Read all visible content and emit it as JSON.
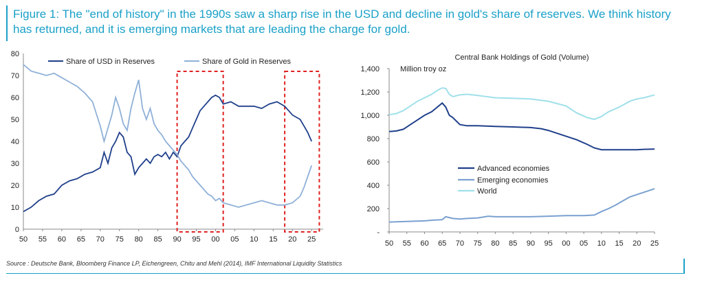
{
  "header": {
    "title": "Figure 1: The \"end of history\" in the 1990s saw a sharp rise in the USD and decline in gold's share of reserves. We think history has returned, and it is emerging markets that are leading the charge for gold."
  },
  "source": "Source : Deutsche Bank, Bloomberg Finance LP, Eichengreen, Chitu and Mehl (2014), IMF International Liquidity Statistics",
  "colors": {
    "accent": "#1aa0c8",
    "dark_blue": "#1f3f8a",
    "light_blue": "#8fb0d8",
    "cyan": "#9fe0ea",
    "red_box": "#e02020"
  },
  "chart_data": [
    {
      "type": "line",
      "title": "",
      "xlim": [
        1950,
        2028
      ],
      "ylim": [
        0,
        80
      ],
      "x_ticks": [
        "50",
        "55",
        "60",
        "65",
        "70",
        "75",
        "80",
        "85",
        "90",
        "95",
        "00",
        "05",
        "10",
        "15",
        "20",
        "25"
      ],
      "y_ticks": [
        "0",
        "10",
        "20",
        "30",
        "40",
        "50",
        "60",
        "70",
        "80"
      ],
      "legend_position": "top",
      "annotations": [
        {
          "type": "dashed-box",
          "x_from": 1990,
          "x_to": 2002
        },
        {
          "type": "dashed-box",
          "x_from": 2018,
          "x_to": 2027
        }
      ],
      "series": [
        {
          "name": "Share of USD in Reserves",
          "color": "#1f3f8a",
          "x": [
            1950,
            1952,
            1954,
            1956,
            1958,
            1960,
            1962,
            1964,
            1966,
            1968,
            1970,
            1971,
            1972,
            1973,
            1974,
            1975,
            1976,
            1977,
            1978,
            1979,
            1980,
            1981,
            1982,
            1983,
            1984,
            1985,
            1986,
            1987,
            1988,
            1989,
            1990,
            1991,
            1992,
            1993,
            1994,
            1995,
            1996,
            1997,
            1998,
            1999,
            2000,
            2001,
            2002,
            2004,
            2006,
            2008,
            2010,
            2012,
            2014,
            2016,
            2018,
            2020,
            2022,
            2023,
            2024,
            2025
          ],
          "y": [
            8,
            10,
            13,
            15,
            16,
            20,
            22,
            23,
            25,
            26,
            28,
            35,
            30,
            37,
            40,
            44,
            42,
            35,
            33,
            25,
            28,
            30,
            32,
            30,
            33,
            34,
            33,
            35,
            32,
            35,
            33,
            38,
            40,
            42,
            46,
            50,
            54,
            56,
            58,
            60,
            61,
            60,
            57,
            58,
            56,
            56,
            56,
            55,
            57,
            58,
            56,
            52,
            50,
            47,
            44,
            40
          ]
        },
        {
          "name": "Share of Gold in Reserves",
          "color": "#8fb0d8",
          "x": [
            1950,
            1952,
            1954,
            1956,
            1958,
            1960,
            1962,
            1964,
            1966,
            1968,
            1970,
            1971,
            1972,
            1973,
            1974,
            1975,
            1976,
            1977,
            1978,
            1979,
            1980,
            1981,
            1982,
            1983,
            1984,
            1985,
            1986,
            1987,
            1988,
            1989,
            1990,
            1991,
            1992,
            1993,
            1994,
            1995,
            1996,
            1997,
            1998,
            1999,
            2000,
            2001,
            2002,
            2004,
            2006,
            2008,
            2010,
            2012,
            2014,
            2016,
            2018,
            2020,
            2022,
            2023,
            2024,
            2025
          ],
          "y": [
            75,
            72,
            71,
            70,
            71,
            69,
            67,
            65,
            62,
            58,
            47,
            40,
            46,
            52,
            60,
            55,
            48,
            45,
            55,
            62,
            68,
            55,
            50,
            55,
            48,
            45,
            43,
            40,
            38,
            36,
            34,
            31,
            29,
            27,
            24,
            22,
            20,
            18,
            16,
            15,
            13,
            14,
            12,
            11,
            10,
            11,
            12,
            13,
            12,
            11,
            11,
            12,
            15,
            19,
            24,
            29
          ]
        }
      ]
    },
    {
      "type": "line",
      "title": "Central Bank Holdings of Gold (Volume)",
      "ylabel": "Million troy oz",
      "xlim": [
        1950,
        2025
      ],
      "ylim": [
        0,
        1400
      ],
      "x_ticks": [
        "50",
        "55",
        "60",
        "65",
        "70",
        "75",
        "80",
        "85",
        "90",
        "95",
        "00",
        "05",
        "10",
        "15",
        "20",
        "25"
      ],
      "y_ticks": [
        "-",
        "200",
        "400",
        "600",
        "800",
        "1,000",
        "1,200",
        "1,400"
      ],
      "legend_position": "middle-left",
      "series": [
        {
          "name": "Advanced economies",
          "color": "#1f3f8a",
          "x": [
            1950,
            1952,
            1954,
            1956,
            1958,
            1960,
            1962,
            1964,
            1965,
            1966,
            1967,
            1968,
            1970,
            1972,
            1975,
            1980,
            1985,
            1990,
            1993,
            1995,
            1998,
            2000,
            2003,
            2006,
            2008,
            2010,
            2012,
            2015,
            2018,
            2020,
            2022,
            2025
          ],
          "y": [
            860,
            865,
            880,
            920,
            960,
            1000,
            1030,
            1080,
            1105,
            1070,
            1000,
            980,
            920,
            910,
            910,
            905,
            900,
            895,
            885,
            870,
            840,
            820,
            790,
            750,
            720,
            705,
            705,
            705,
            705,
            705,
            708,
            710
          ]
        },
        {
          "name": "Emerging economies",
          "color": "#7aa0d0",
          "x": [
            1950,
            1955,
            1960,
            1962,
            1965,
            1966,
            1968,
            1970,
            1972,
            1975,
            1978,
            1980,
            1985,
            1990,
            1995,
            2000,
            2005,
            2008,
            2010,
            2012,
            2014,
            2016,
            2018,
            2020,
            2022,
            2025
          ],
          "y": [
            85,
            90,
            95,
            100,
            105,
            130,
            115,
            110,
            115,
            120,
            135,
            130,
            130,
            130,
            135,
            140,
            140,
            145,
            175,
            200,
            230,
            265,
            300,
            320,
            340,
            370
          ]
        },
        {
          "name": "World",
          "color": "#9fe0ea",
          "x": [
            1950,
            1952,
            1954,
            1956,
            1958,
            1960,
            1962,
            1964,
            1965,
            1966,
            1967,
            1968,
            1970,
            1972,
            1975,
            1980,
            1985,
            1990,
            1995,
            2000,
            2003,
            2006,
            2008,
            2010,
            2012,
            2015,
            2018,
            2020,
            2022,
            2025
          ],
          "y": [
            1005,
            1015,
            1040,
            1080,
            1120,
            1150,
            1180,
            1220,
            1235,
            1230,
            1180,
            1160,
            1175,
            1180,
            1170,
            1150,
            1145,
            1140,
            1120,
            1080,
            1020,
            980,
            965,
            990,
            1030,
            1070,
            1120,
            1140,
            1150,
            1175
          ]
        }
      ]
    }
  ]
}
